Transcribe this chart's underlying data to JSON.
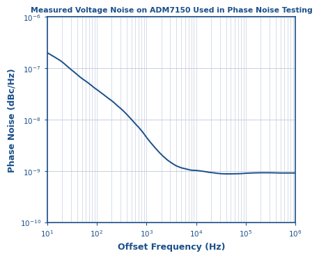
{
  "title": "Measured Voltage Noise on ADM7150 Used in Phase Noise Testing",
  "xlabel": "Offset Frequency (Hz)",
  "ylabel": "Phase Noise (dBc/Hz)",
  "xlim": [
    10,
    1000000
  ],
  "ylim": [
    1e-10,
    1e-06
  ],
  "line_color": "#1a4f8a",
  "background_color": "#ffffff",
  "grid_color_major_x": "#c8cfe0",
  "grid_color_minor_x": "#c8cfe0",
  "grid_color_major_y": "#c8cfe0",
  "spine_color": "#1a4f8a",
  "title_color": "#1a4f8a",
  "label_color": "#1a4f8a",
  "x_data": [
    10,
    12,
    14,
    16,
    18,
    20,
    23,
    27,
    31,
    36,
    42,
    50,
    58,
    68,
    80,
    90,
    105,
    120,
    140,
    165,
    190,
    220,
    260,
    300,
    360,
    420,
    500,
    600,
    700,
    850,
    1000,
    1200,
    1500,
    1800,
    2200,
    2700,
    3300,
    4000,
    5000,
    6500,
    8000,
    10000,
    12000,
    15000,
    18000,
    22000,
    27000,
    33000,
    40000,
    50000,
    65000,
    80000,
    100000,
    130000,
    160000,
    200000,
    250000,
    320000,
    400000,
    500000,
    650000,
    800000,
    1000000
  ],
  "y_data": [
    2e-07,
    1.8e-07,
    1.65e-07,
    1.52e-07,
    1.42e-07,
    1.32e-07,
    1.18e-07,
    1.03e-07,
    9.2e-08,
    8.2e-08,
    7.2e-08,
    6.3e-08,
    5.7e-08,
    5.1e-08,
    4.5e-08,
    4.1e-08,
    3.7e-08,
    3.35e-08,
    3e-08,
    2.65e-08,
    2.4e-08,
    2.15e-08,
    1.85e-08,
    1.65e-08,
    1.4e-08,
    1.2e-08,
    1e-08,
    8.2e-09,
    7e-09,
    5.6e-09,
    4.5e-09,
    3.6e-09,
    2.8e-09,
    2.3e-09,
    1.9e-09,
    1.6e-09,
    1.4e-09,
    1.25e-09,
    1.15e-09,
    1.08e-09,
    1.03e-09,
    1.02e-09,
    1e-09,
    9.7e-10,
    9.4e-10,
    9.2e-10,
    8.95e-10,
    8.8e-10,
    8.75e-10,
    8.75e-10,
    8.8e-10,
    8.85e-10,
    9e-10,
    9.1e-10,
    9.15e-10,
    9.2e-10,
    9.2e-10,
    9.2e-10,
    9.15e-10,
    9.1e-10,
    9.1e-10,
    9.1e-10,
    9.1e-10
  ]
}
